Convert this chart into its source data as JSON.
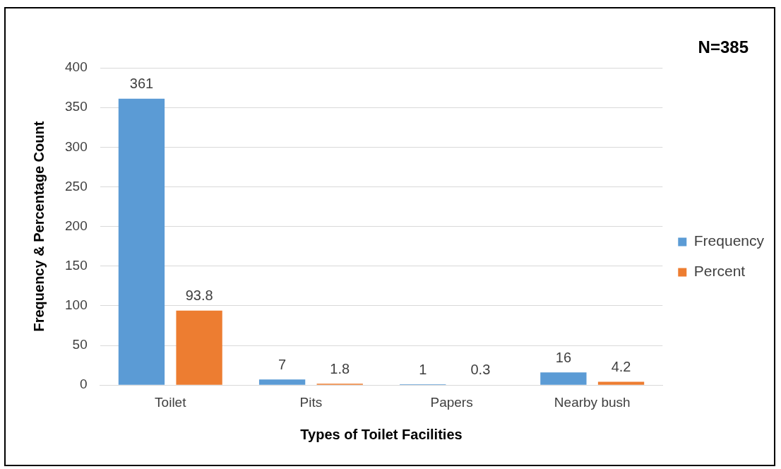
{
  "chart_data": {
    "type": "bar",
    "xlabel": "Types of Toilet Facilities",
    "ylabel": "Frequency & Percentage Count",
    "categories": [
      "Toilet",
      "Pits",
      "Papers",
      "Nearby bush"
    ],
    "series": [
      {
        "name": "Frequency",
        "color": "#5b9bd5",
        "values": [
          361,
          7,
          1,
          16
        ]
      },
      {
        "name": "Percent",
        "color": "#ed7d31",
        "values": [
          93.8,
          1.8,
          0.3,
          4.2
        ]
      }
    ],
    "ylim": [
      0,
      400
    ],
    "yticks": [
      0,
      50,
      100,
      150,
      200,
      250,
      300,
      350,
      400
    ],
    "grid": "y",
    "legend": "right",
    "data_labels": true,
    "annotations": [
      "N=385"
    ]
  }
}
